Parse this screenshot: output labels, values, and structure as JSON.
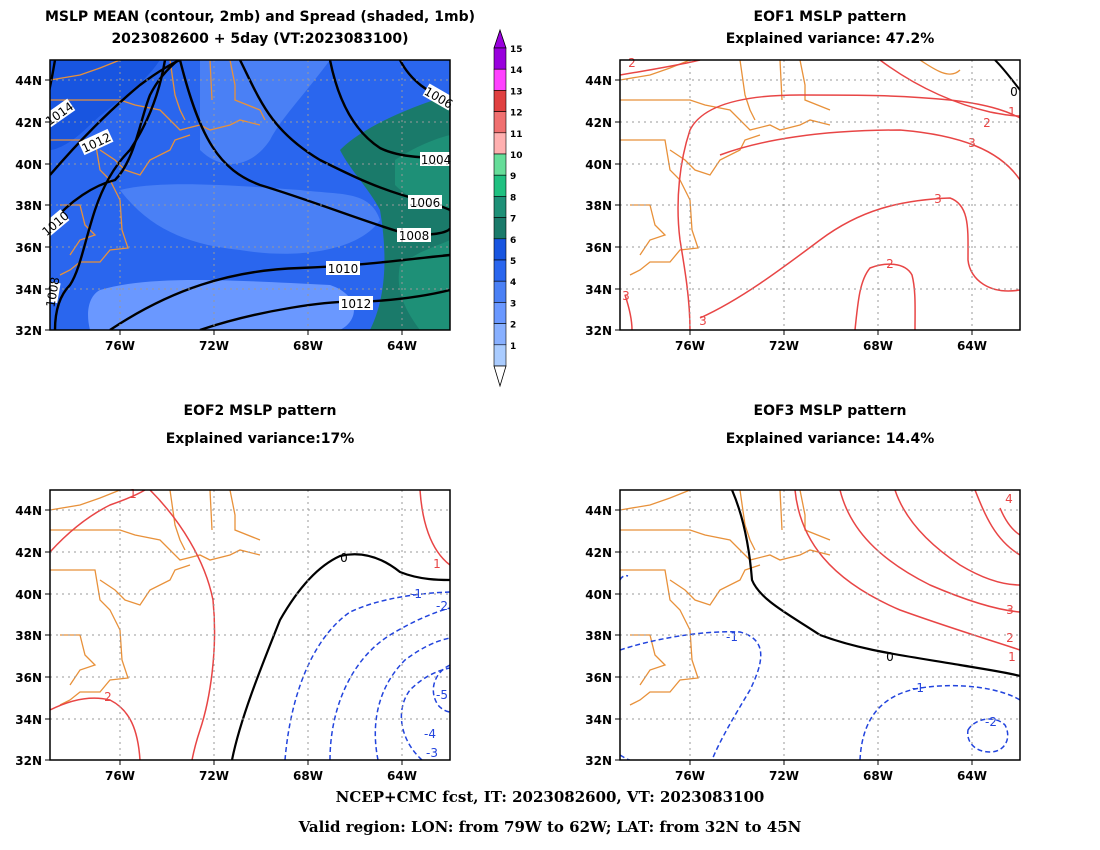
{
  "colors": {
    "coast": "#e8913a",
    "pos": "#e84545",
    "neg": "#2244dd",
    "zero": "#000000",
    "grid": "#999999",
    "spread": [
      "#aaccff",
      "#88b0ff",
      "#6a98ff",
      "#4a80f5",
      "#2a66ee",
      "#1855e0",
      "#1a7a6a",
      "#1e9077",
      "#20c080",
      "#66dd99",
      "#ffb0b0",
      "#f07070",
      "#e04040",
      "#ff40ff",
      "#9900dd"
    ]
  },
  "panels": [
    {
      "id": "mean",
      "title_line1": "MSLP MEAN (contour, 2mb) and Spread (shaded, 1mb)",
      "title_line2": "2023082600 + 5day (VT:2023083100)",
      "xticks": [
        "76W",
        "72W",
        "68W",
        "64W"
      ],
      "yticks": [
        "44N",
        "42N",
        "40N",
        "38N",
        "36N",
        "34N",
        "32N"
      ],
      "contour_labels": [
        "1014",
        "1012",
        "1010",
        "1008",
        "1006",
        "1004",
        "1006",
        "1008",
        "1010",
        "1012"
      ]
    },
    {
      "id": "eof1",
      "title_line1": "EOF1 MSLP pattern",
      "title_line2": "Explained variance: 47.2%",
      "xticks": [
        "76W",
        "72W",
        "68W",
        "64W"
      ],
      "yticks": [
        "44N",
        "42N",
        "40N",
        "38N",
        "36N",
        "34N",
        "32N"
      ],
      "contour_labels": [
        "2",
        "1",
        "2",
        "3",
        "3",
        "2",
        "3",
        "3",
        "0"
      ]
    },
    {
      "id": "eof2",
      "title_line1": "EOF2 MSLP pattern",
      "title_line2": "Explained variance:17%",
      "xticks": [
        "76W",
        "72W",
        "68W",
        "64W"
      ],
      "yticks": [
        "44N",
        "42N",
        "40N",
        "38N",
        "36N",
        "34N",
        "32N"
      ],
      "contour_labels": [
        "1",
        "1",
        "2",
        "0",
        "-1",
        "-2",
        "-3",
        "-4",
        "-5"
      ]
    },
    {
      "id": "eof3",
      "title_line1": "EOF3 MSLP pattern",
      "title_line2": "Explained variance: 14.4%",
      "xticks": [
        "76W",
        "72W",
        "68W",
        "64W"
      ],
      "yticks": [
        "44N",
        "42N",
        "40N",
        "38N",
        "36N",
        "34N",
        "32N"
      ],
      "contour_labels": [
        "4",
        "3",
        "2",
        "1",
        "0",
        "-1",
        "-1",
        "-2"
      ]
    }
  ],
  "colorbar": {
    "labels": [
      "15",
      "14",
      "13",
      "12",
      "11",
      "10",
      "9",
      "8",
      "7",
      "6",
      "5",
      "4",
      "3",
      "2",
      "1"
    ]
  },
  "footer": {
    "line1": "NCEP+CMC fcst, IT: 2023082600, VT: 2023083100",
    "line2": "Valid region: LON: from 79W to 62W; LAT: from 32N to 45N"
  },
  "chart_data": [
    {
      "type": "heatmap",
      "title": "MSLP MEAN (contour, 2mb) and Spread (shaded, 1mb)",
      "subtitle": "2023082600 + 5day (VT:2023083100)",
      "x_range_lon": [
        -79,
        -62
      ],
      "y_range_lat": [
        32,
        45
      ],
      "contour_interval_mb": 2,
      "shading_interval_mb": 1,
      "mean_contours_mb": [
        1004,
        1006,
        1008,
        1010,
        1012,
        1014
      ],
      "spread_levels_mb": [
        1,
        2,
        3,
        4,
        5,
        6,
        7,
        8,
        9,
        10,
        11,
        12,
        13,
        14,
        15
      ]
    },
    {
      "type": "heatmap",
      "title": "EOF1 MSLP pattern",
      "explained_variance_pct": 47.2,
      "contour_levels": [
        0,
        1,
        2,
        3
      ]
    },
    {
      "type": "heatmap",
      "title": "EOF2 MSLP pattern",
      "explained_variance_pct": 17,
      "contour_levels": [
        -5,
        -4,
        -3,
        -2,
        -1,
        0,
        1,
        2
      ]
    },
    {
      "type": "heatmap",
      "title": "EOF3 MSLP pattern",
      "explained_variance_pct": 14.4,
      "contour_levels": [
        -2,
        -1,
        0,
        1,
        2,
        3,
        4
      ]
    }
  ]
}
